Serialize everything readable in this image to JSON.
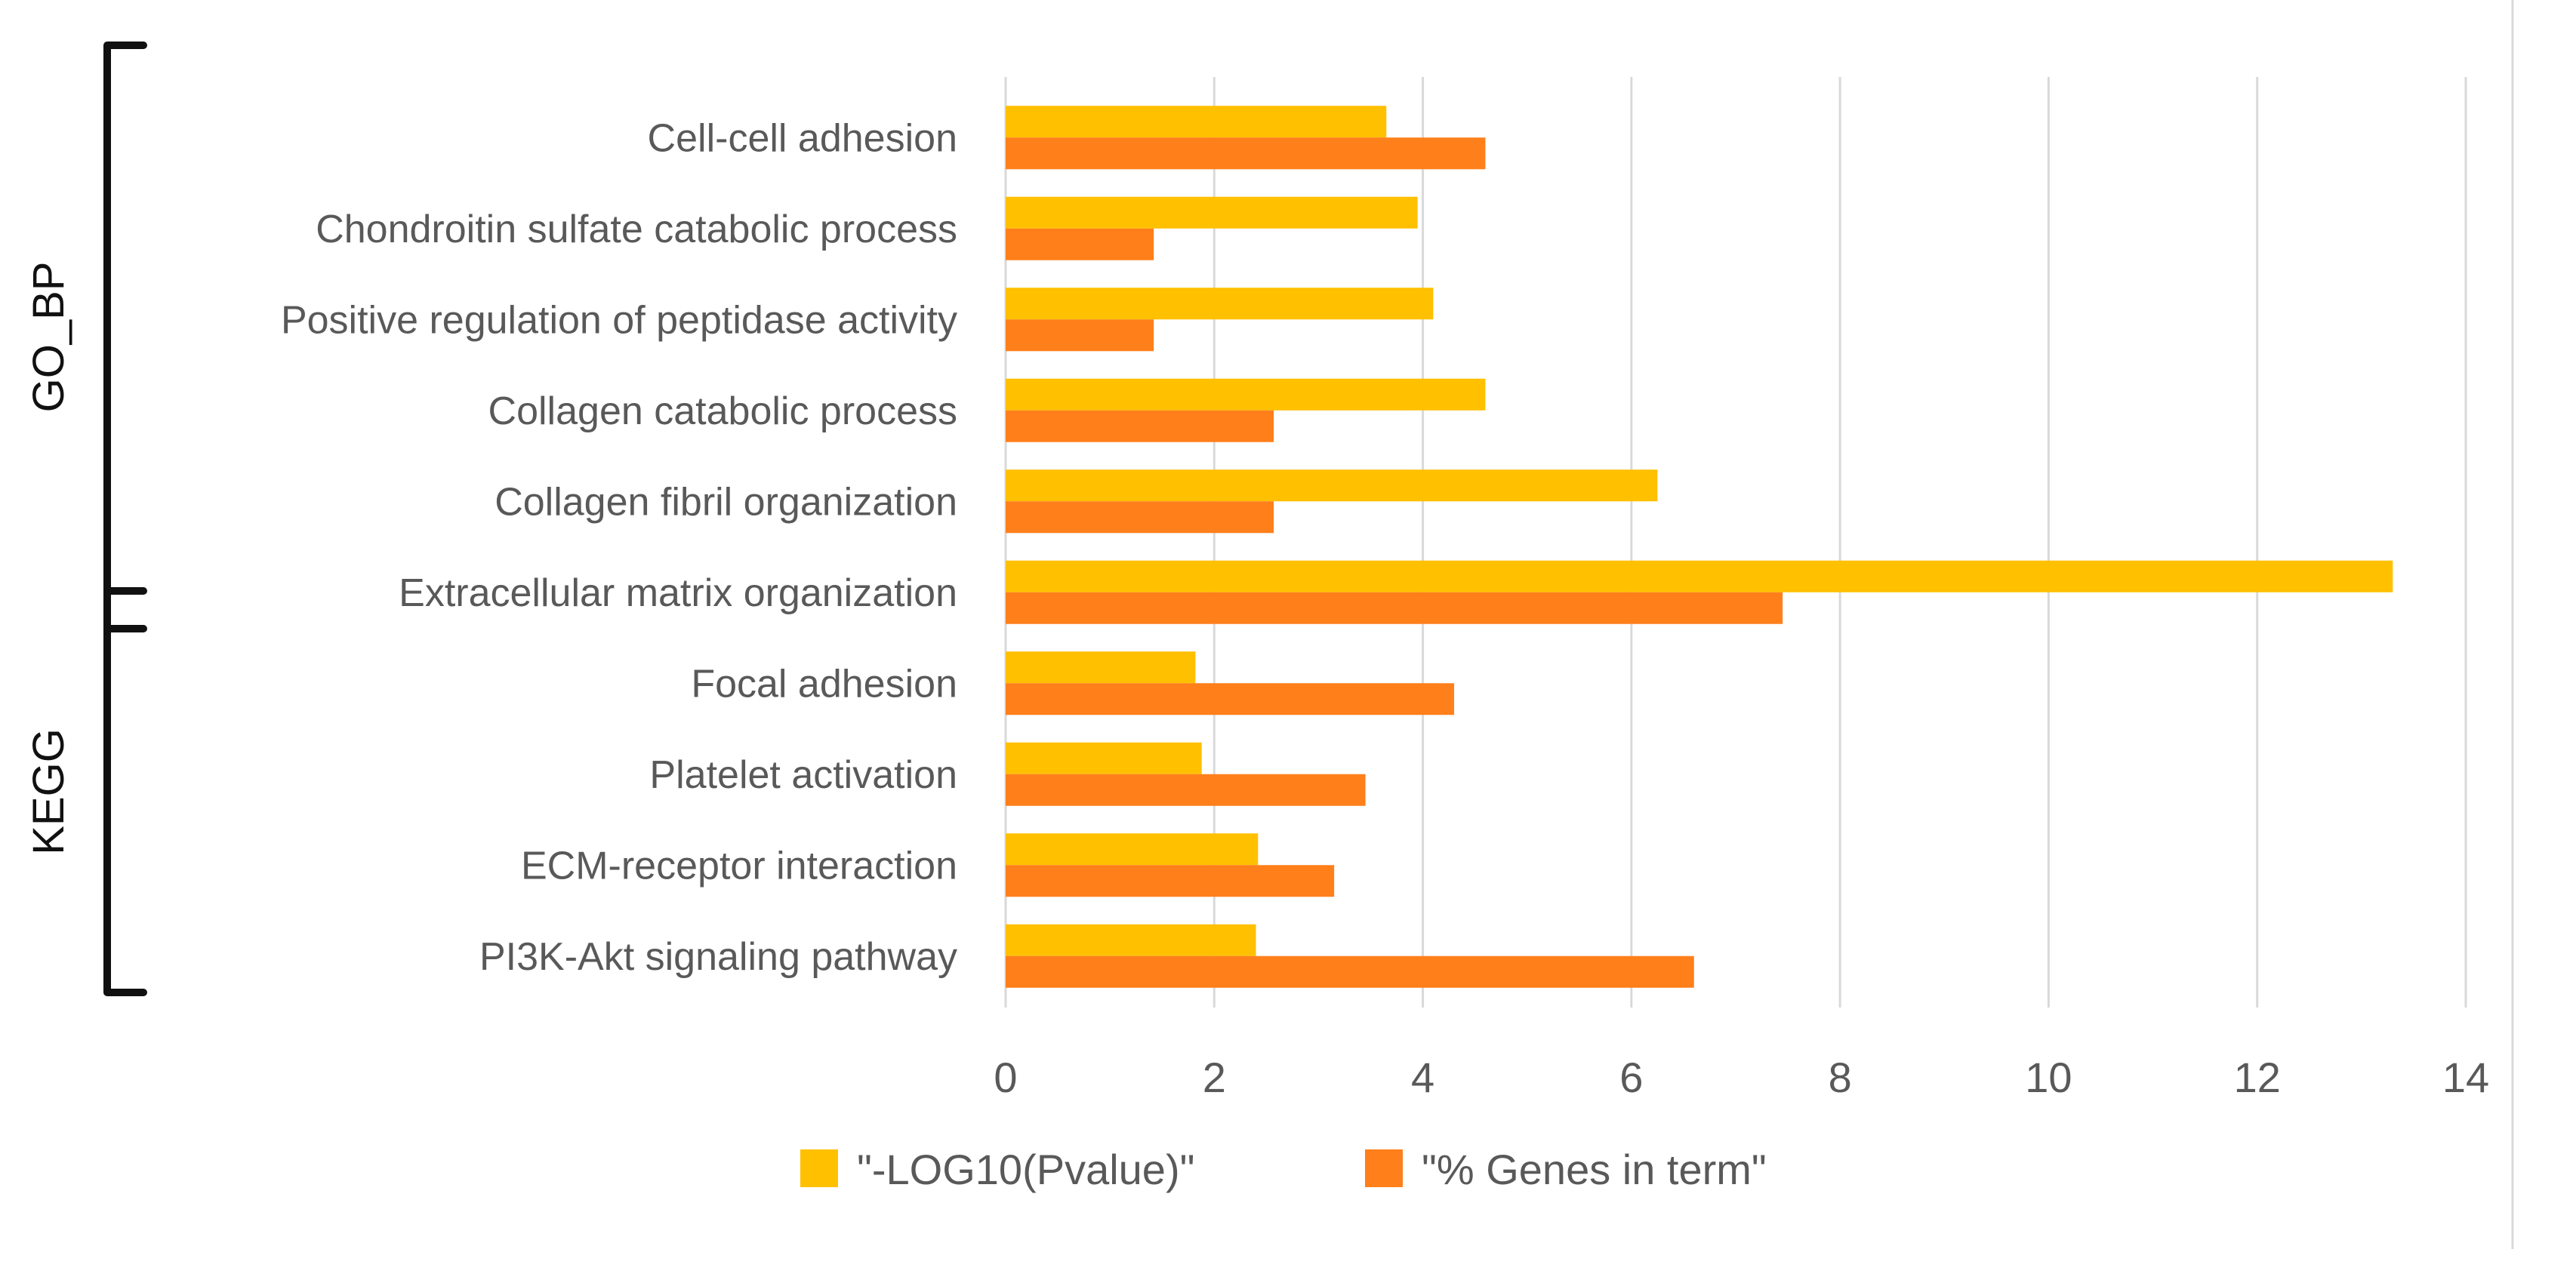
{
  "chart_data": {
    "type": "bar",
    "orientation": "horizontal",
    "title": "",
    "xlabel": "",
    "ylabel": "",
    "xlim": [
      0,
      14
    ],
    "x_ticks": [
      0,
      2,
      4,
      6,
      8,
      10,
      12,
      14
    ],
    "grid": true,
    "legend_position": "bottom",
    "categories": [
      "Cell-cell adhesion",
      "Chondroitin sulfate catabolic process",
      "Positive regulation of peptidase activity",
      "Collagen catabolic process",
      "Collagen fibril organization",
      "Extracellular matrix organization",
      "Focal adhesion",
      "Platelet activation",
      "ECM-receptor interaction",
      "PI3K-Akt signaling pathway"
    ],
    "series": [
      {
        "name": "\"-LOG10(Pvalue)\"",
        "color": "#FFC000",
        "values": [
          3.65,
          3.95,
          4.1,
          4.6,
          6.25,
          13.3,
          1.82,
          1.88,
          2.42,
          2.4
        ]
      },
      {
        "name": "\"% Genes in term\"",
        "color": "#FF7F1A",
        "values": [
          4.6,
          1.42,
          1.42,
          2.57,
          2.57,
          7.45,
          4.3,
          3.45,
          3.15,
          6.6
        ]
      }
    ],
    "groups": [
      {
        "label": "GO_BP",
        "categories": [
          0,
          5
        ]
      },
      {
        "label": "KEGG",
        "categories": [
          6,
          9
        ]
      }
    ]
  }
}
